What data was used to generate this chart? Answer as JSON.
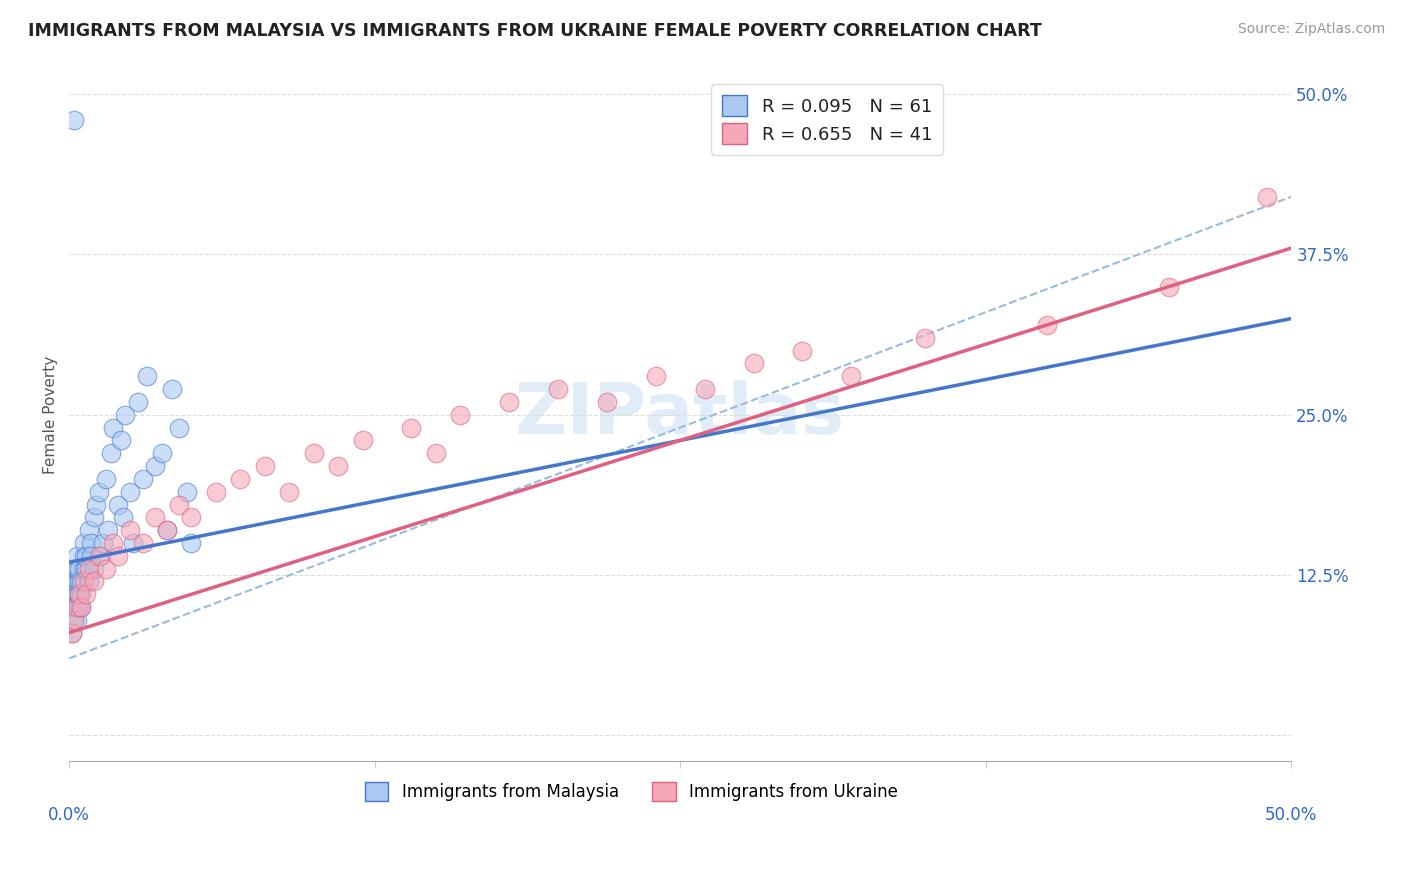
{
  "title": "IMMIGRANTS FROM MALAYSIA VS IMMIGRANTS FROM UKRAINE FEMALE POVERTY CORRELATION CHART",
  "source": "Source: ZipAtlas.com",
  "ylabel": "Female Poverty",
  "y_ticks_right": [
    "12.5%",
    "25.0%",
    "37.5%",
    "50.0%"
  ],
  "y_tick_vals": [
    0.125,
    0.25,
    0.375,
    0.5
  ],
  "legend_r1": "R = 0.095",
  "legend_n1": "N = 61",
  "legend_r2": "R = 0.655",
  "legend_n2": "N = 41",
  "series1_label": "Immigrants from Malaysia",
  "series2_label": "Immigrants from Ukraine",
  "color_blue_fill": "#aac8f0",
  "color_pink_fill": "#f4a8b8",
  "color_line_blue": "#4477cc",
  "color_line_pink": "#e06080",
  "color_dashed": "#99bbdd",
  "color_legend_text": "#3366cc",
  "watermark_text": "ZIPatlas",
  "xlim": [
    0.0,
    0.5
  ],
  "ylim": [
    -0.02,
    0.52
  ],
  "x_bottom_left": "0.0%",
  "x_bottom_right": "50.0%",
  "malaysia_x": [
    0.001,
    0.001,
    0.001,
    0.001,
    0.001,
    0.001,
    0.001,
    0.002,
    0.002,
    0.002,
    0.002,
    0.002,
    0.002,
    0.003,
    0.003,
    0.003,
    0.003,
    0.003,
    0.004,
    0.004,
    0.004,
    0.004,
    0.005,
    0.005,
    0.005,
    0.006,
    0.006,
    0.006,
    0.007,
    0.007,
    0.008,
    0.008,
    0.009,
    0.009,
    0.01,
    0.01,
    0.011,
    0.012,
    0.013,
    0.014,
    0.015,
    0.016,
    0.017,
    0.018,
    0.02,
    0.021,
    0.022,
    0.023,
    0.025,
    0.026,
    0.028,
    0.03,
    0.032,
    0.035,
    0.038,
    0.04,
    0.042,
    0.045,
    0.048,
    0.05,
    0.002
  ],
  "malaysia_y": [
    0.08,
    0.09,
    0.1,
    0.11,
    0.12,
    0.1,
    0.11,
    0.09,
    0.1,
    0.11,
    0.12,
    0.13,
    0.1,
    0.11,
    0.12,
    0.13,
    0.14,
    0.09,
    0.1,
    0.11,
    0.12,
    0.13,
    0.1,
    0.11,
    0.12,
    0.13,
    0.14,
    0.15,
    0.14,
    0.13,
    0.12,
    0.16,
    0.15,
    0.14,
    0.17,
    0.13,
    0.18,
    0.19,
    0.14,
    0.15,
    0.2,
    0.16,
    0.22,
    0.24,
    0.18,
    0.23,
    0.17,
    0.25,
    0.19,
    0.15,
    0.26,
    0.2,
    0.28,
    0.21,
    0.22,
    0.16,
    0.27,
    0.24,
    0.19,
    0.15,
    0.48
  ],
  "ukraine_x": [
    0.001,
    0.002,
    0.003,
    0.004,
    0.005,
    0.006,
    0.007,
    0.008,
    0.01,
    0.012,
    0.015,
    0.018,
    0.02,
    0.025,
    0.03,
    0.035,
    0.04,
    0.045,
    0.05,
    0.06,
    0.07,
    0.08,
    0.09,
    0.1,
    0.11,
    0.12,
    0.14,
    0.15,
    0.16,
    0.18,
    0.2,
    0.22,
    0.24,
    0.26,
    0.28,
    0.3,
    0.32,
    0.35,
    0.4,
    0.45,
    0.49
  ],
  "ukraine_y": [
    0.08,
    0.09,
    0.1,
    0.11,
    0.1,
    0.12,
    0.11,
    0.13,
    0.12,
    0.14,
    0.13,
    0.15,
    0.14,
    0.16,
    0.15,
    0.17,
    0.16,
    0.18,
    0.17,
    0.19,
    0.2,
    0.21,
    0.19,
    0.22,
    0.21,
    0.23,
    0.24,
    0.22,
    0.25,
    0.26,
    0.27,
    0.26,
    0.28,
    0.27,
    0.29,
    0.3,
    0.28,
    0.31,
    0.32,
    0.35,
    0.42
  ],
  "blue_line_slope": 0.38,
  "blue_line_intercept": 0.135,
  "pink_line_slope": 0.6,
  "pink_line_intercept": 0.08,
  "dashed_line_slope": 0.72,
  "dashed_line_intercept": 0.06
}
